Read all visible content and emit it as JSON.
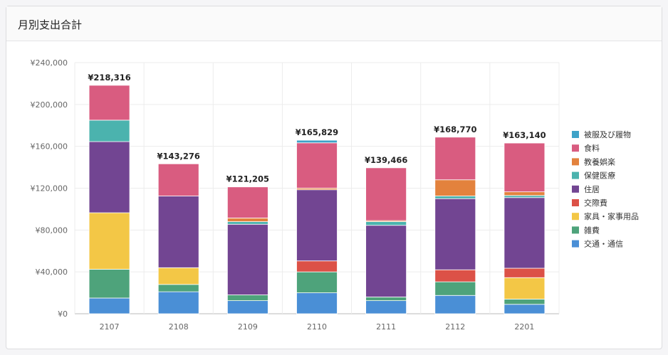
{
  "card": {
    "title": "月別支出合計"
  },
  "chart_data": {
    "type": "bar",
    "stacked": true,
    "title": "月別支出合計",
    "categories": [
      "2107",
      "2108",
      "2109",
      "2110",
      "2111",
      "2112",
      "2201"
    ],
    "totals": [
      "¥218,316",
      "¥143,276",
      "¥121,205",
      "¥165,829",
      "¥139,466",
      "¥168,770",
      "¥163,140"
    ],
    "ylim": [
      0,
      240000
    ],
    "yticks": [
      0,
      40000,
      80000,
      120000,
      160000,
      200000,
      240000
    ],
    "ytick_labels": [
      "¥0",
      "¥40,000",
      "¥80,000",
      "¥120,000",
      "¥160,000",
      "¥200,000",
      "¥240,000"
    ],
    "grid": true,
    "legend_position": "right",
    "series": [
      {
        "name": "交通・通信",
        "color": "#4a8fd6",
        "values": [
          15000,
          21000,
          12500,
          20000,
          12500,
          17500,
          9000
        ]
      },
      {
        "name": "雑費",
        "color": "#4ea37b",
        "values": [
          27500,
          7000,
          5500,
          20000,
          3500,
          13000,
          5000
        ]
      },
      {
        "name": "家具・家事用品",
        "color": "#f3c746",
        "values": [
          54000,
          16000,
          0,
          0,
          0,
          0,
          20500
        ]
      },
      {
        "name": "交際費",
        "color": "#dc5147",
        "values": [
          0,
          0,
          0,
          10500,
          0,
          11500,
          9000
        ]
      },
      {
        "name": "住居",
        "color": "#724592",
        "values": [
          68000,
          68500,
          67500,
          68000,
          68500,
          68000,
          67500
        ]
      },
      {
        "name": "保健医療",
        "color": "#4bb3ae",
        "values": [
          20500,
          0,
          2500,
          0,
          3500,
          2500,
          2000
        ]
      },
      {
        "name": "教養娯楽",
        "color": "#e3823d",
        "values": [
          0,
          0,
          3500,
          1500,
          1000,
          15500,
          3500
        ]
      },
      {
        "name": "食料",
        "color": "#d95c80",
        "values": [
          33316,
          30776,
          29705,
          43329,
          50466,
          40770,
          46640
        ]
      },
      {
        "name": "被服及び履物",
        "color": "#3fa3c8",
        "values": [
          0,
          0,
          0,
          2500,
          0,
          0,
          0
        ]
      }
    ],
    "legend_order": [
      "被服及び履物",
      "食料",
      "教養娯楽",
      "保健医療",
      "住居",
      "交際費",
      "家具・家事用品",
      "雑費",
      "交通・通信"
    ]
  }
}
